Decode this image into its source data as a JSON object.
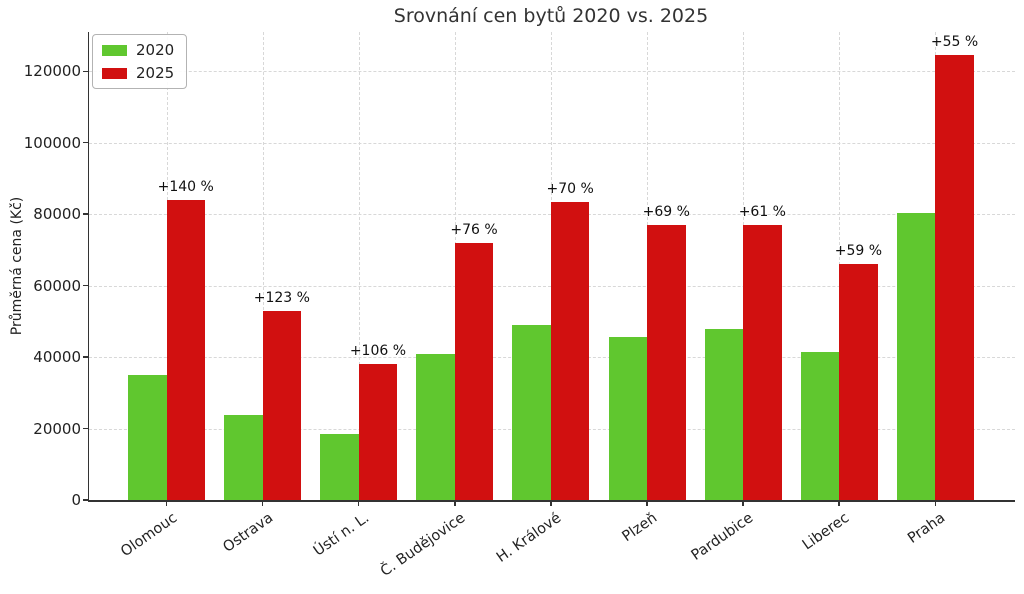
{
  "chart_data": {
    "type": "bar",
    "title": "Srovnání cen bytů 2020 vs. 2025",
    "xlabel": "",
    "ylabel": "Průměrná cena (Kč)",
    "categories": [
      "Olomouc",
      "Ostrava",
      "Ústí n. L.",
      "Č. Budějovice",
      "H. Králové",
      "Plzeň",
      "Pardubice",
      "Liberec",
      "Praha"
    ],
    "series": [
      {
        "name": "2020",
        "color": "#60c72f",
        "values": [
          35000,
          23800,
          18500,
          40800,
          49000,
          45600,
          47800,
          41500,
          80300
        ]
      },
      {
        "name": "2025",
        "color": "#d11010",
        "values": [
          84000,
          53000,
          38100,
          71800,
          83300,
          77000,
          77000,
          66000,
          124500
        ]
      }
    ],
    "annotations": [
      "+140 %",
      "+123 %",
      "+106 %",
      "+76 %",
      "+70 %",
      "+69 %",
      "+61 %",
      "+59 %",
      "+55 %"
    ],
    "ylim": [
      0,
      131000
    ],
    "yticks": [
      0,
      20000,
      40000,
      60000,
      80000,
      100000,
      120000
    ],
    "grid": true,
    "legend_position": "upper left"
  }
}
